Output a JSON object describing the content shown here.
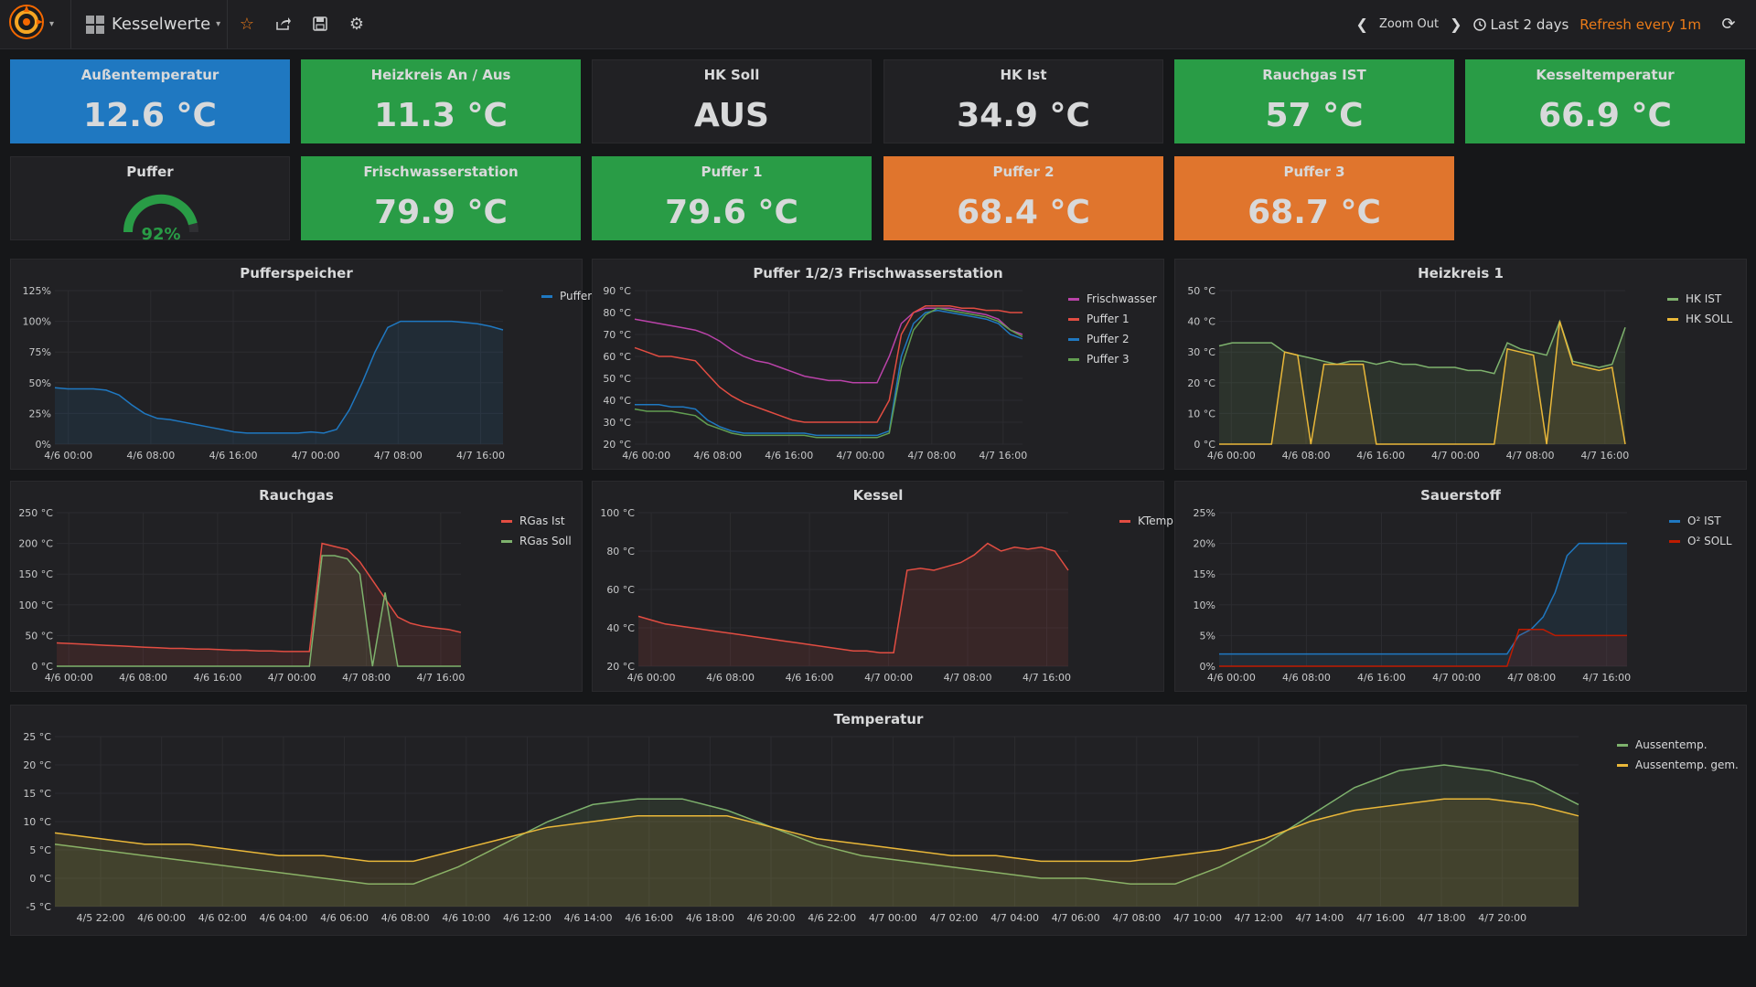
{
  "navbar": {
    "dashboard_title": "Kesselwerte",
    "icons": [
      "grafana-logo-icon",
      "star-icon",
      "share-icon",
      "save-icon",
      "settings-icon"
    ],
    "zoom_out": "Zoom Out",
    "time_range": "Last 2 days",
    "refresh": "Refresh every 1m"
  },
  "colors": {
    "green": "#299c46",
    "blue": "#1f78c1",
    "orange": "#e0752d",
    "accent": "#eb7b18"
  },
  "stats": [
    {
      "title": "Außentemperatur",
      "value": "12.6 °C",
      "color": "blue"
    },
    {
      "title": "Heizkreis An / Aus",
      "value": "11.3 °C",
      "color": "green"
    },
    {
      "title": "HK Soll",
      "value": "AUS",
      "color": "dark"
    },
    {
      "title": "HK Ist",
      "value": "34.9 °C",
      "color": "dark"
    },
    {
      "title": "Rauchgas IST",
      "value": "57 °C",
      "color": "green"
    },
    {
      "title": "Kesseltemperatur",
      "value": "66.9 °C",
      "color": "green"
    },
    {
      "title": "Frischwasserstation",
      "value": "79.9 °C",
      "color": "green"
    },
    {
      "title": "Puffer 1",
      "value": "79.6 °C",
      "color": "green"
    },
    {
      "title": "Puffer 2",
      "value": "68.4 °C",
      "color": "orange"
    },
    {
      "title": "Puffer 3",
      "value": "68.7 °C",
      "color": "orange"
    }
  ],
  "gauge": {
    "title": "Puffer",
    "value": "92%",
    "fraction": 0.92
  },
  "chart_data": [
    {
      "title": "Pufferspeicher",
      "type": "area",
      "x_ticks": [
        "4/6 00:00",
        "4/6 08:00",
        "4/6 16:00",
        "4/7 00:00",
        "4/7 08:00",
        "4/7 16:00"
      ],
      "y_ticks": [
        "125%",
        "100%",
        "75%",
        "50%",
        "25%",
        "0%"
      ],
      "ylim": [
        0,
        125
      ],
      "series": [
        {
          "name": "Puffer",
          "color": "#1f78c1",
          "values": [
            46,
            45,
            45,
            45,
            44,
            40,
            32,
            25,
            21,
            20,
            18,
            16,
            14,
            12,
            10,
            9,
            9,
            9,
            9,
            9,
            10,
            9,
            12,
            28,
            50,
            75,
            95,
            100,
            100,
            100,
            100,
            100,
            99,
            98,
            96,
            93
          ]
        }
      ]
    },
    {
      "title": "Puffer 1/2/3 Frischwasserstation",
      "type": "line",
      "x_ticks": [
        "4/6 00:00",
        "4/6 08:00",
        "4/6 16:00",
        "4/7 00:00",
        "4/7 08:00",
        "4/7 16:00"
      ],
      "y_ticks": [
        "90 °C",
        "80 °C",
        "70 °C",
        "60 °C",
        "50 °C",
        "40 °C",
        "30 °C",
        "20 °C"
      ],
      "ylim": [
        20,
        90
      ],
      "series": [
        {
          "name": "Frischwasser",
          "color": "#ba43a9",
          "values": [
            77,
            76,
            75,
            74,
            73,
            72,
            70,
            67,
            63,
            60,
            58,
            57,
            55,
            53,
            51,
            50,
            49,
            49,
            48,
            48,
            48,
            60,
            75,
            80,
            82,
            82,
            82,
            81,
            80,
            79,
            77,
            72,
            70
          ]
        },
        {
          "name": "Puffer 1",
          "color": "#e24d42",
          "values": [
            64,
            62,
            60,
            60,
            59,
            58,
            52,
            46,
            42,
            39,
            37,
            35,
            33,
            31,
            30,
            30,
            30,
            30,
            30,
            30,
            30,
            40,
            70,
            80,
            83,
            83,
            83,
            82,
            82,
            81,
            81,
            80,
            80
          ]
        },
        {
          "name": "Puffer 2",
          "color": "#1f78c1",
          "values": [
            38,
            38,
            38,
            37,
            37,
            36,
            31,
            28,
            26,
            25,
            25,
            25,
            25,
            25,
            25,
            24,
            24,
            24,
            24,
            24,
            24,
            26,
            60,
            75,
            80,
            81,
            80,
            79,
            78,
            77,
            75,
            70,
            68
          ]
        },
        {
          "name": "Puffer 3",
          "color": "#629e51",
          "values": [
            36,
            35,
            35,
            35,
            34,
            33,
            29,
            27,
            25,
            24,
            24,
            24,
            24,
            24,
            24,
            23,
            23,
            23,
            23,
            23,
            23,
            25,
            55,
            72,
            79,
            82,
            81,
            80,
            79,
            78,
            76,
            72,
            69
          ]
        }
      ]
    },
    {
      "title": "Heizkreis 1",
      "type": "area",
      "x_ticks": [
        "4/6 00:00",
        "4/6 08:00",
        "4/6 16:00",
        "4/7 00:00",
        "4/7 08:00",
        "4/7 16:00"
      ],
      "y_ticks": [
        "50 °C",
        "40 °C",
        "30 °C",
        "20 °C",
        "10 °C",
        "0 °C"
      ],
      "ylim": [
        0,
        50
      ],
      "series": [
        {
          "name": "HK IST",
          "color": "#7eb26d",
          "values": [
            32,
            33,
            33,
            33,
            33,
            30,
            29,
            28,
            27,
            26,
            27,
            27,
            26,
            27,
            26,
            26,
            25,
            25,
            25,
            24,
            24,
            23,
            33,
            31,
            30,
            29,
            40,
            27,
            26,
            25,
            26,
            38
          ]
        },
        {
          "name": "HK SOLL",
          "color": "#eab839",
          "values": [
            0,
            0,
            0,
            0,
            0,
            30,
            29,
            0,
            26,
            26,
            26,
            26,
            0,
            0,
            0,
            0,
            0,
            0,
            0,
            0,
            0,
            0,
            31,
            30,
            29,
            0,
            40,
            26,
            25,
            24,
            25,
            0
          ]
        }
      ]
    },
    {
      "title": "Rauchgas",
      "type": "area",
      "x_ticks": [
        "4/6 00:00",
        "4/6 08:00",
        "4/6 16:00",
        "4/7 00:00",
        "4/7 08:00",
        "4/7 16:00"
      ],
      "y_ticks": [
        "250 °C",
        "200 °C",
        "150 °C",
        "100 °C",
        "50 °C",
        "0 °C"
      ],
      "ylim": [
        0,
        250
      ],
      "series": [
        {
          "name": "RGas Ist",
          "color": "#e24d42",
          "values": [
            38,
            37,
            36,
            35,
            34,
            33,
            32,
            31,
            30,
            29,
            29,
            28,
            28,
            27,
            26,
            26,
            25,
            25,
            24,
            24,
            24,
            200,
            195,
            190,
            170,
            140,
            110,
            80,
            70,
            65,
            62,
            60,
            55
          ]
        },
        {
          "name": "RGas Soll",
          "color": "#7eb26d",
          "values": [
            0,
            0,
            0,
            0,
            0,
            0,
            0,
            0,
            0,
            0,
            0,
            0,
            0,
            0,
            0,
            0,
            0,
            0,
            0,
            0,
            0,
            180,
            180,
            175,
            150,
            0,
            120,
            0,
            0,
            0,
            0,
            0,
            0
          ]
        }
      ]
    },
    {
      "title": "Kessel",
      "type": "area",
      "x_ticks": [
        "4/6 00:00",
        "4/6 08:00",
        "4/6 16:00",
        "4/7 00:00",
        "4/7 08:00",
        "4/7 16:00"
      ],
      "y_ticks": [
        "100 °C",
        "80 °C",
        "60 °C",
        "40 °C",
        "20 °C"
      ],
      "ylim": [
        20,
        100
      ],
      "series": [
        {
          "name": "KTemp",
          "color": "#e24d42",
          "values": [
            46,
            44,
            42,
            41,
            40,
            39,
            38,
            37,
            36,
            35,
            34,
            33,
            32,
            31,
            30,
            29,
            28,
            28,
            27,
            27,
            70,
            71,
            70,
            72,
            74,
            78,
            84,
            80,
            82,
            81,
            82,
            80,
            70
          ]
        }
      ]
    },
    {
      "title": "Sauerstoff",
      "type": "area",
      "x_ticks": [
        "4/6 00:00",
        "4/6 08:00",
        "4/6 16:00",
        "4/7 00:00",
        "4/7 08:00",
        "4/7 16:00"
      ],
      "y_ticks": [
        "25%",
        "20%",
        "15%",
        "10%",
        "5%",
        "0%"
      ],
      "ylim": [
        0,
        25
      ],
      "series": [
        {
          "name": "O² IST",
          "color": "#1f78c1",
          "values": [
            2,
            2,
            2,
            2,
            2,
            2,
            2,
            2,
            2,
            2,
            2,
            2,
            2,
            2,
            2,
            2,
            2,
            2,
            2,
            2,
            2,
            2,
            2,
            2,
            2,
            5,
            6,
            8,
            12,
            18,
            20,
            20,
            20,
            20,
            20
          ]
        },
        {
          "name": "O² SOLL",
          "color": "#bf1b00",
          "values": [
            0,
            0,
            0,
            0,
            0,
            0,
            0,
            0,
            0,
            0,
            0,
            0,
            0,
            0,
            0,
            0,
            0,
            0,
            0,
            0,
            0,
            0,
            0,
            0,
            0,
            6,
            6,
            6,
            5,
            5,
            5,
            5,
            5,
            5,
            5
          ]
        }
      ]
    },
    {
      "title": "Temperatur",
      "type": "area",
      "x_ticks": [
        "4/5 22:00",
        "4/6 00:00",
        "4/6 02:00",
        "4/6 04:00",
        "4/6 06:00",
        "4/6 08:00",
        "4/6 10:00",
        "4/6 12:00",
        "4/6 14:00",
        "4/6 16:00",
        "4/6 18:00",
        "4/6 20:00",
        "4/6 22:00",
        "4/7 00:00",
        "4/7 02:00",
        "4/7 04:00",
        "4/7 06:00",
        "4/7 08:00",
        "4/7 10:00",
        "4/7 12:00",
        "4/7 14:00",
        "4/7 16:00",
        "4/7 18:00",
        "4/7 20:00"
      ],
      "y_ticks": [
        "25 °C",
        "20 °C",
        "15 °C",
        "10 °C",
        "5 °C",
        "0 °C",
        "-5 °C"
      ],
      "ylim": [
        -5,
        25
      ],
      "series": [
        {
          "name": "Aussentemp.",
          "color": "#7eb26d",
          "values": [
            6,
            5,
            4,
            3,
            2,
            1,
            0,
            -1,
            -1,
            2,
            6,
            10,
            13,
            14,
            14,
            12,
            9,
            6,
            4,
            3,
            2,
            1,
            0,
            0,
            -1,
            -1,
            2,
            6,
            11,
            16,
            19,
            20,
            19,
            17,
            13
          ]
        },
        {
          "name": "Aussentemp. gem.",
          "color": "#eab839",
          "values": [
            8,
            7,
            6,
            6,
            5,
            4,
            4,
            3,
            3,
            5,
            7,
            9,
            10,
            11,
            11,
            11,
            9,
            7,
            6,
            5,
            4,
            4,
            3,
            3,
            3,
            4,
            5,
            7,
            10,
            12,
            13,
            14,
            14,
            13,
            11
          ]
        }
      ]
    }
  ]
}
